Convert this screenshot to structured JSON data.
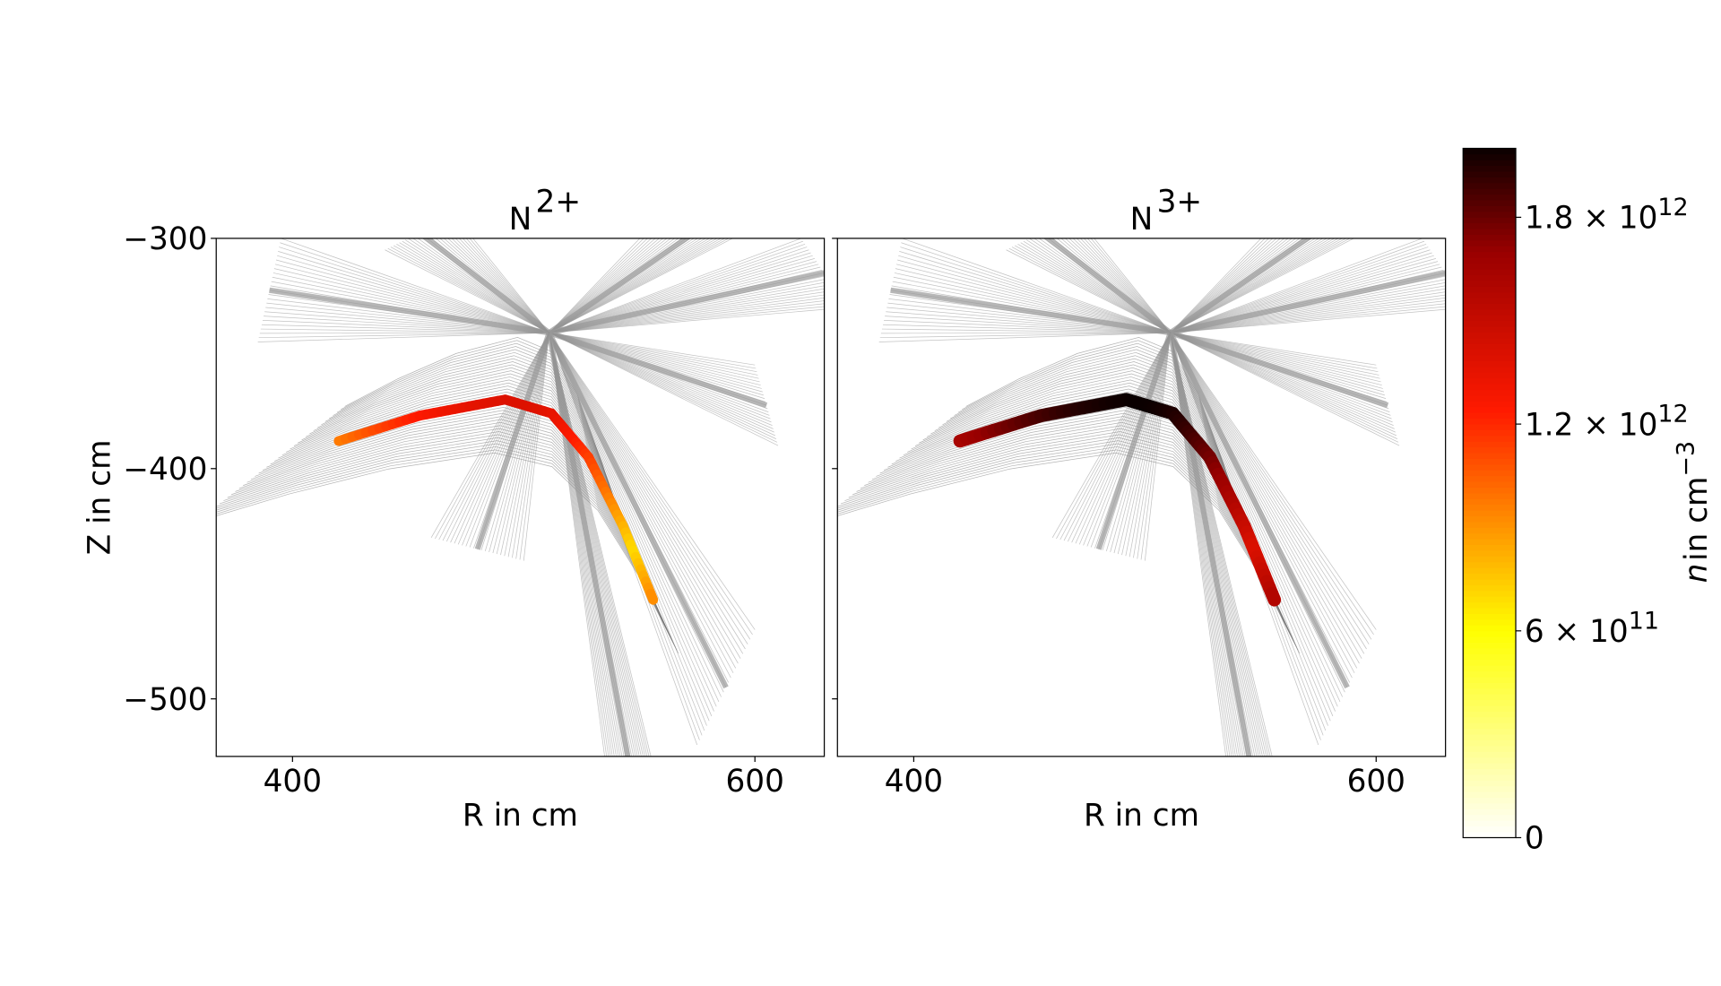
{
  "chart_data": [
    {
      "type": "heatmap",
      "title": "N",
      "title_superscript": "2+",
      "xlabel": "R in cm",
      "ylabel": "Z in cm",
      "xlim": [
        367,
        630
      ],
      "ylim": [
        -525,
        -300
      ],
      "xticks": [
        400,
        600
      ],
      "yticks": [
        {
          "value": -300,
          "label": "−300"
        },
        {
          "value": -400,
          "label": "−400"
        },
        {
          "value": -500,
          "label": "−500"
        }
      ]
    },
    {
      "type": "heatmap",
      "title": "N",
      "title_superscript": "3+",
      "xlabel": "R in cm",
      "xlim": [
        367,
        630
      ],
      "ylim": [
        -525,
        -300
      ],
      "xticks": [
        400,
        600
      ],
      "yticks": [
        -300,
        -400,
        -500
      ]
    },
    {
      "type": "colorbar",
      "label": "n",
      "label_units": "in cm^−3",
      "colormap": "hot_r",
      "lim": [
        0,
        2000000000000
      ],
      "ticks": [
        0,
        {
          "value": 600000000000,
          "label": "6 × 10^11"
        },
        {
          "value": 1200000000000,
          "label": "1.2 × 10^12"
        },
        {
          "value": 1800000000000,
          "label": "1.8 × 10^12"
        }
      ]
    }
  ]
}
